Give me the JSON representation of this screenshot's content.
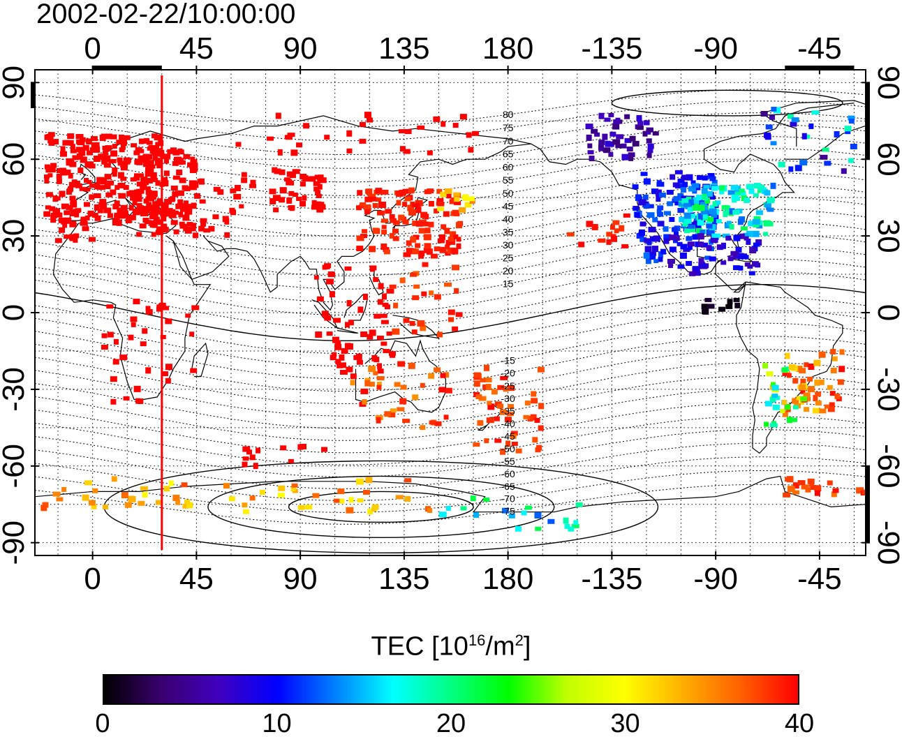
{
  "title": "2002-02-22/10:00:00",
  "x_ticks": [
    "0",
    "45",
    "90",
    "135",
    "180",
    "-135",
    "-90",
    "-45"
  ],
  "x_tick_lons": [
    0,
    45,
    90,
    135,
    180,
    225,
    270,
    315
  ],
  "y_ticks": [
    "90",
    "60",
    "30",
    "0",
    "-30",
    "-60",
    "-90"
  ],
  "y_tick_lats": [
    90,
    60,
    30,
    0,
    -30,
    -60,
    -90
  ],
  "magnetic_lat_labels_north": [
    "80",
    "75",
    "70",
    "65",
    "60",
    "55",
    "50",
    "45",
    "40",
    "35",
    "30",
    "25",
    "20",
    "15"
  ],
  "magnetic_lat_labels_south": [
    "-15",
    "-20",
    "-25",
    "-30",
    "-35",
    "-40",
    "-45",
    "-50",
    "-55",
    "-60",
    "-65",
    "-70",
    "-75"
  ],
  "colorbar": {
    "title_main": "TEC  [10",
    "title_sup1": "16",
    "title_mid": "/m",
    "title_sup2": "2",
    "title_end": "]",
    "labels": [
      "0",
      "10",
      "20",
      "30",
      "40"
    ],
    "min": 0,
    "max": 40,
    "colors": [
      "#000000",
      "#3a0070",
      "#4000c0",
      "#0000ff",
      "#0080ff",
      "#00ffff",
      "#00ff80",
      "#00ff00",
      "#c0ff00",
      "#ffff00",
      "#ffb000",
      "#ff6000",
      "#ff0000"
    ]
  },
  "terminator_longitude": 30,
  "map_extent": {
    "lon_min": -25,
    "lon_max": 335,
    "lat_min": -95,
    "lat_max": 95
  }
}
